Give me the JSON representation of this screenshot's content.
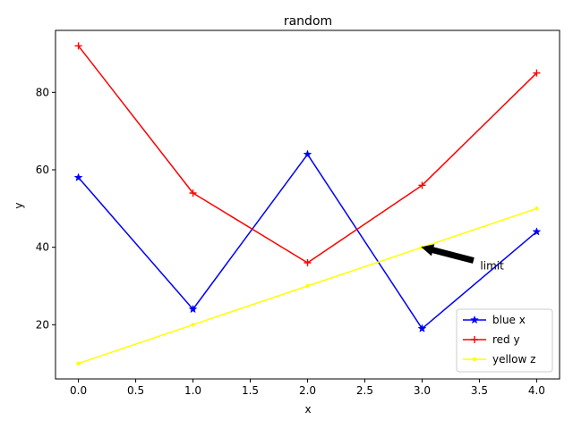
{
  "chart_data": {
    "type": "line",
    "title": "random",
    "xlabel": "x",
    "ylabel": "y",
    "x": [
      0,
      1,
      2,
      3,
      4
    ],
    "xticks": [
      0.0,
      0.5,
      1.0,
      1.5,
      2.0,
      2.5,
      3.0,
      3.5,
      4.0
    ],
    "xtick_labels": [
      "0.0",
      "0.5",
      "1.0",
      "1.5",
      "2.0",
      "2.5",
      "3.0",
      "3.5",
      "4.0"
    ],
    "yticks": [
      20,
      40,
      60,
      80
    ],
    "ytick_labels": [
      "20",
      "40",
      "60",
      "80"
    ],
    "xlim": [
      -0.2,
      4.2
    ],
    "ylim": [
      6,
      96
    ],
    "grid": false,
    "legend": "lower-right",
    "series": [
      {
        "name": "blue x",
        "values": [
          58,
          24,
          64,
          19,
          44
        ],
        "color": "#0000ff",
        "marker": "star"
      },
      {
        "name": "red y",
        "values": [
          92,
          54,
          36,
          56,
          85
        ],
        "color": "#ff0000",
        "marker": "plus"
      },
      {
        "name": "yellow z",
        "values": [
          10,
          20,
          30,
          40,
          50
        ],
        "color": "#ffff00",
        "marker": "point"
      }
    ],
    "annotations": [
      {
        "text": "limit",
        "text_x": 3.5,
        "text_y": 35,
        "arrow_to_x": 3,
        "arrow_to_y": 40
      }
    ]
  }
}
